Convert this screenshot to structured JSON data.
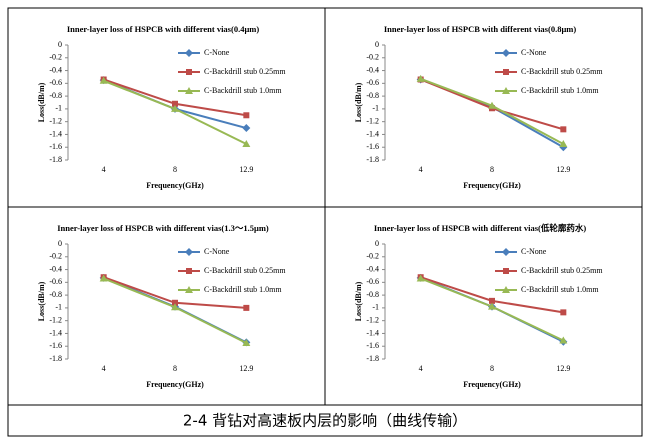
{
  "chart_data": [
    {
      "type": "line",
      "title": "Inner-layer loss of HSPCB with different vias(0.4μm)",
      "x_label": "Frequency(GHz)",
      "y_label": "Loss(dB/m)",
      "categories": [
        "4",
        "8",
        "12.9"
      ],
      "ylim": [
        -1.8,
        0
      ],
      "yticks": [
        0,
        -0.2,
        -0.4,
        -0.6,
        -0.8,
        -1,
        -1.2,
        -1.4,
        -1.6,
        -1.8
      ],
      "series": [
        {
          "name": "C-None",
          "color": "#4a7ebb",
          "marker": "diamond",
          "values": [
            -0.55,
            -1.0,
            -1.3
          ]
        },
        {
          "name": "C-Backdrill stub 0.25mm",
          "color": "#be4b48",
          "marker": "square",
          "values": [
            -0.54,
            -0.92,
            -1.1
          ]
        },
        {
          "name": "C-Backdrill stub 1.0mm",
          "color": "#98b954",
          "marker": "triangle",
          "values": [
            -0.56,
            -1.0,
            -1.55
          ]
        }
      ]
    },
    {
      "type": "line",
      "title": "Inner-layer loss of HSPCB with different vias(0.8μm)",
      "x_label": "Frequency(GHz)",
      "y_label": "Loss(dB/m)",
      "categories": [
        "4",
        "8",
        "12.9"
      ],
      "ylim": [
        -1.8,
        0
      ],
      "yticks": [
        0,
        -0.2,
        -0.4,
        -0.6,
        -0.8,
        -1,
        -1.2,
        -1.4,
        -1.6,
        -1.8
      ],
      "series": [
        {
          "name": "C-None",
          "color": "#4a7ebb",
          "marker": "diamond",
          "values": [
            -0.54,
            -0.97,
            -1.6
          ]
        },
        {
          "name": "C-Backdrill stub 0.25mm",
          "color": "#be4b48",
          "marker": "square",
          "values": [
            -0.54,
            -0.99,
            -1.32
          ]
        },
        {
          "name": "C-Backdrill stub 1.0mm",
          "color": "#98b954",
          "marker": "triangle",
          "values": [
            -0.53,
            -0.95,
            -1.55
          ]
        }
      ]
    },
    {
      "type": "line",
      "title": "Inner-layer loss of HSPCB with different vias(1.3～1.5μm)",
      "x_label": "Frequency(GHz)",
      "y_label": "Loss(dB/m)",
      "categories": [
        "4",
        "8",
        "12.9"
      ],
      "ylim": [
        -1.8,
        0
      ],
      "yticks": [
        0,
        -0.2,
        -0.4,
        -0.6,
        -0.8,
        -1,
        -1.2,
        -1.4,
        -1.6,
        -1.8
      ],
      "series": [
        {
          "name": "C-None",
          "color": "#4a7ebb",
          "marker": "diamond",
          "values": [
            -0.53,
            -0.98,
            -1.54
          ]
        },
        {
          "name": "C-Backdrill stub 0.25mm",
          "color": "#be4b48",
          "marker": "square",
          "values": [
            -0.52,
            -0.92,
            -1.0
          ]
        },
        {
          "name": "C-Backdrill stub 1.0mm",
          "color": "#98b954",
          "marker": "triangle",
          "values": [
            -0.54,
            -0.99,
            -1.55
          ]
        }
      ]
    },
    {
      "type": "line",
      "title": "Inner-layer loss of HSPCB with different vias(低轮廓药水)",
      "x_label": "Frequency(GHz)",
      "y_label": "Loss(dB/m)",
      "categories": [
        "4",
        "8",
        "12.9"
      ],
      "ylim": [
        -1.8,
        0
      ],
      "yticks": [
        0,
        -0.2,
        -0.4,
        -0.6,
        -0.8,
        -1,
        -1.2,
        -1.4,
        -1.6,
        -1.8
      ],
      "series": [
        {
          "name": "C-None",
          "color": "#4a7ebb",
          "marker": "diamond",
          "values": [
            -0.53,
            -0.98,
            -1.53
          ]
        },
        {
          "name": "C-Backdrill stub 0.25mm",
          "color": "#be4b48",
          "marker": "square",
          "values": [
            -0.52,
            -0.89,
            -1.07
          ]
        },
        {
          "name": "C-Backdrill stub 1.0mm",
          "color": "#98b954",
          "marker": "triangle",
          "values": [
            -0.54,
            -0.98,
            -1.51
          ]
        }
      ]
    }
  ],
  "caption": "2-4 背钻对高速板内层的影响（曲线传输）"
}
